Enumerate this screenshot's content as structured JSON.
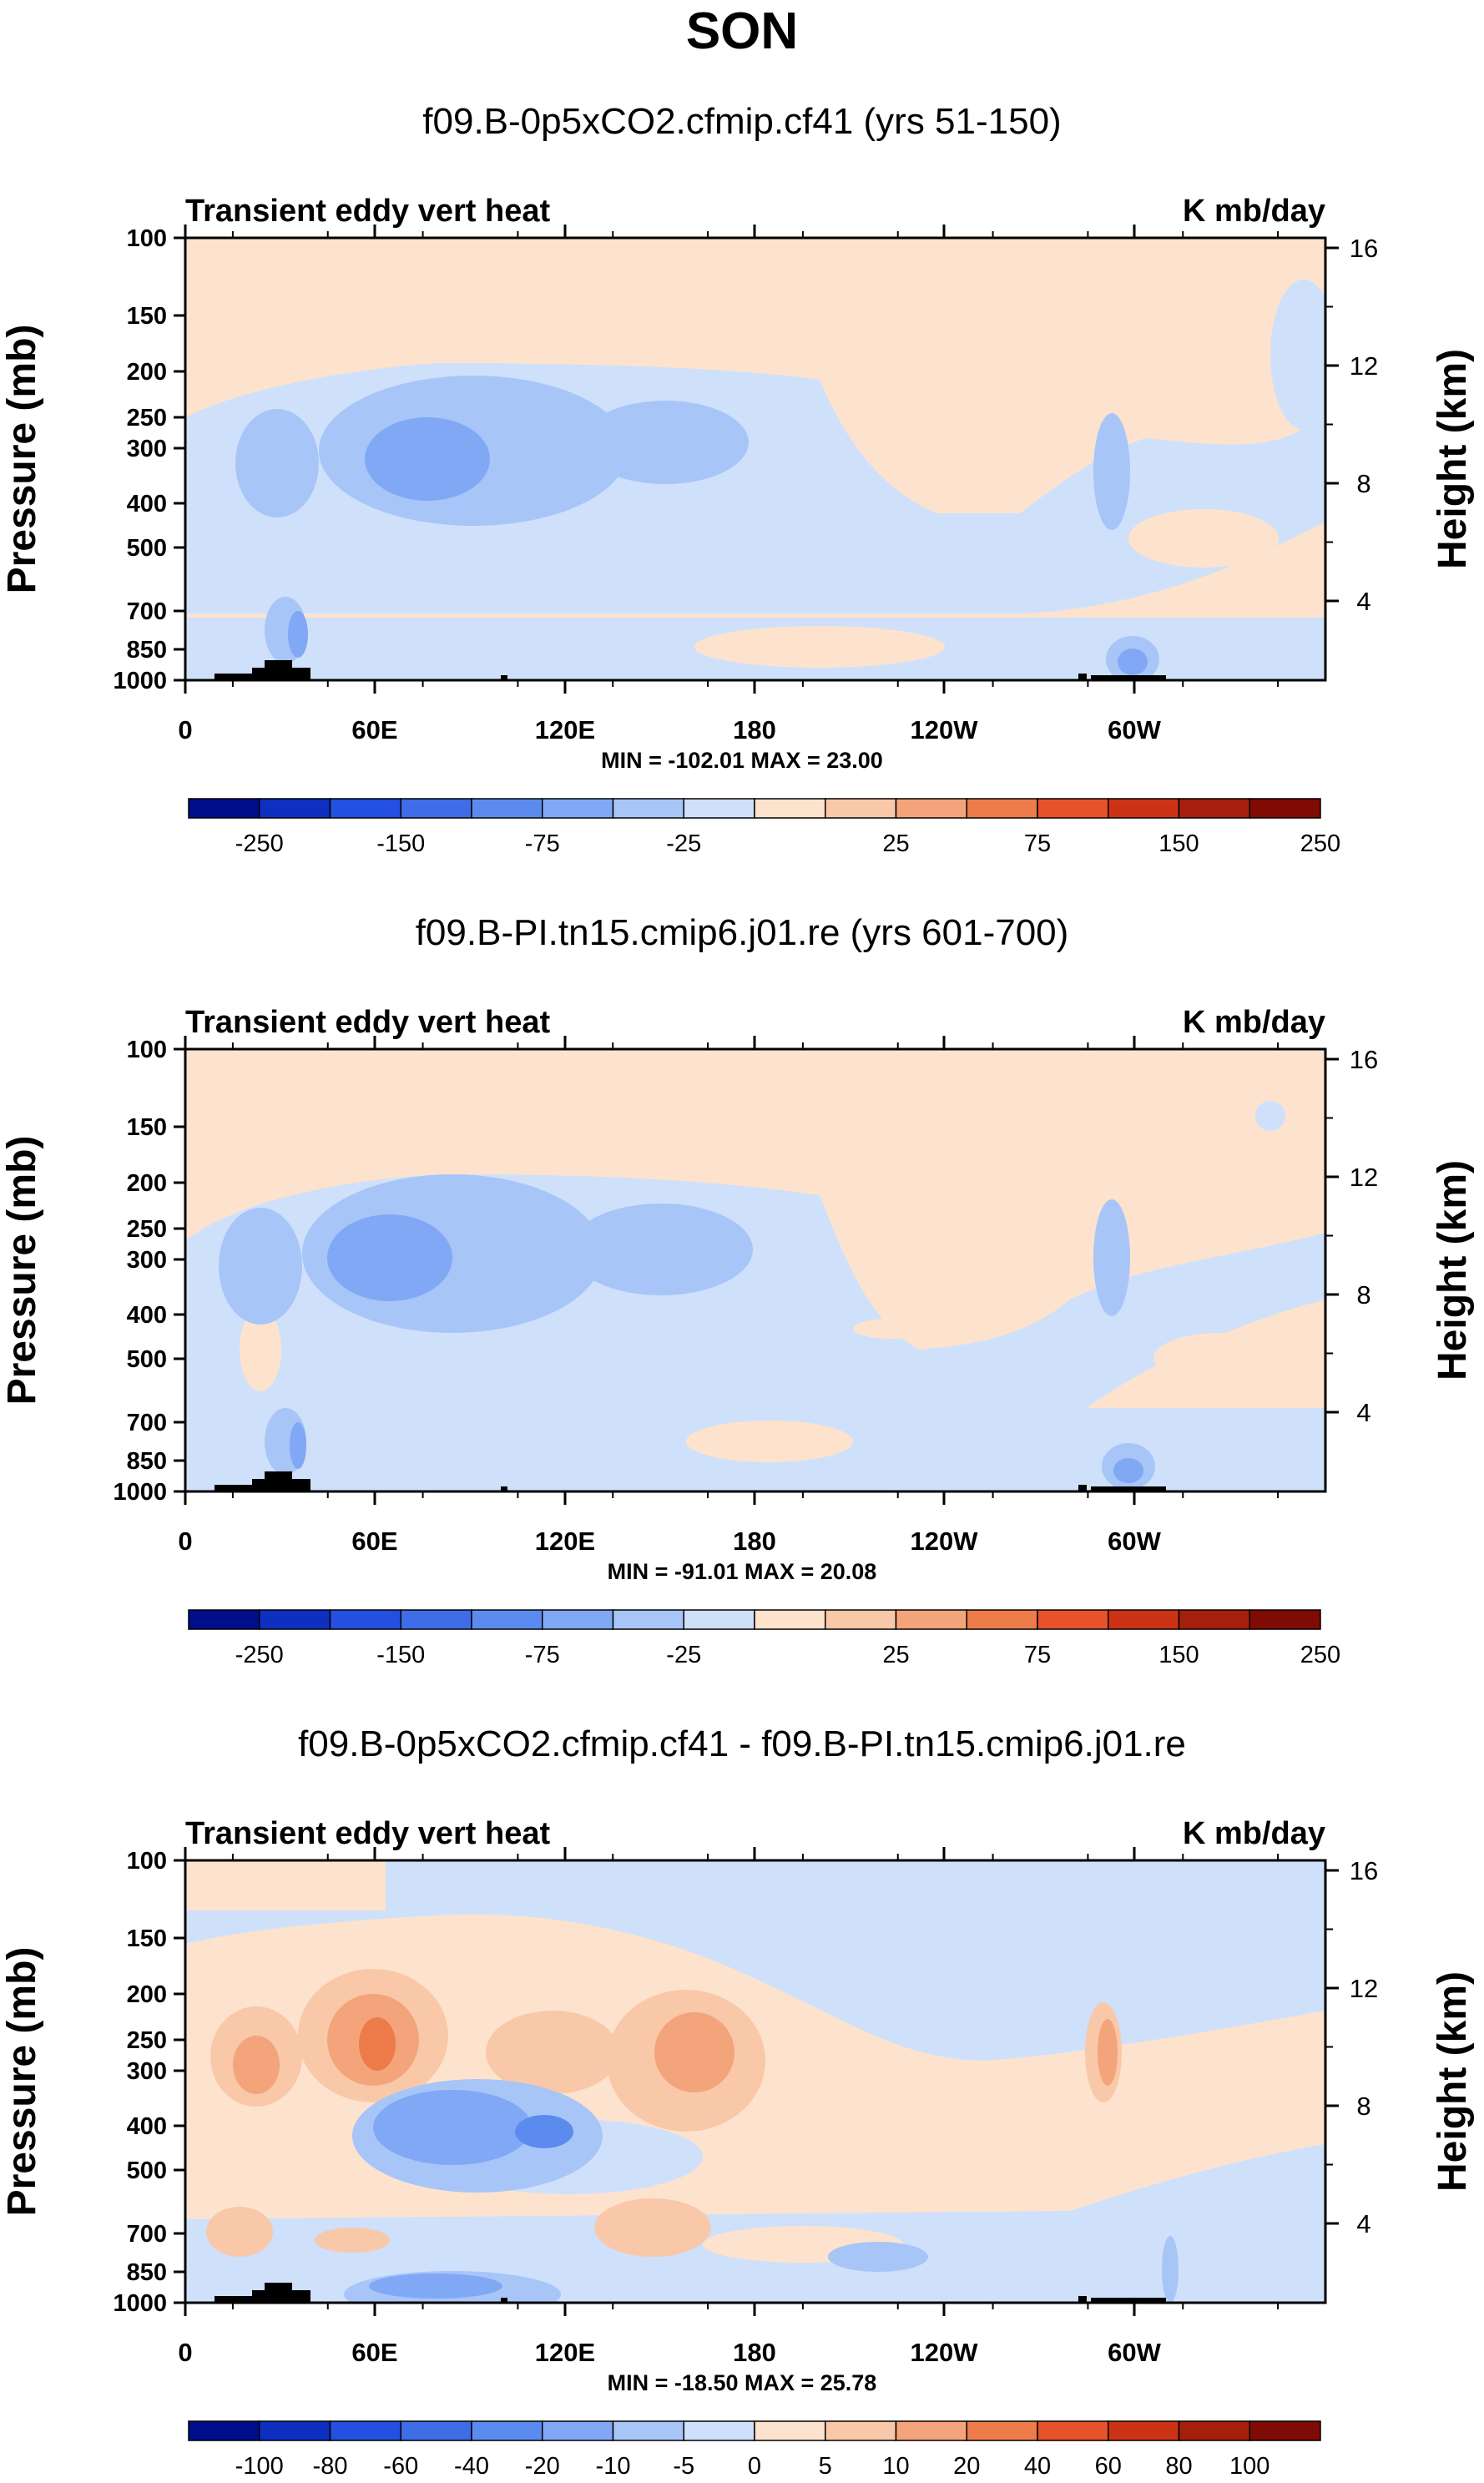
{
  "page_title": "SON",
  "colors": {
    "blues": [
      "#000e8c",
      "#0f2fc1",
      "#2350e0",
      "#3f6de8",
      "#5b8bef",
      "#80a8f4",
      "#a8c5f8",
      "#cfe0fb"
    ],
    "reds": [
      "#fde3cd",
      "#f9c8a9",
      "#f4a47b",
      "#ee7c4a",
      "#e6532a",
      "#cc3315",
      "#a61f0c",
      "#800b04"
    ],
    "land": "#000000"
  },
  "chart_data": [
    {
      "type": "heatmap",
      "title": "f09.B-0p5xCO2.cfmip.cf41 (yrs 51-150)",
      "left_label": "Transient eddy vert heat",
      "right_label": "K mb/day",
      "ylabel": "Pressure (mb)",
      "ylabel_right": "Height (km)",
      "x_ticks": [
        "0",
        "60E",
        "120E",
        "180",
        "120W",
        "60W"
      ],
      "y_ticks": [
        "100",
        "150",
        "200",
        "250",
        "300",
        "400",
        "500",
        "700",
        "850",
        "1000"
      ],
      "y_ticks_right": [
        "16",
        "12",
        "8",
        "4"
      ],
      "stats": "MIN = -102.01   MAX =  23.00",
      "colorbar_labels": [
        "-250",
        "-150",
        "-75",
        "-25",
        "25",
        "75",
        "150",
        "250"
      ],
      "zlim": [
        -102.01,
        23.0
      ]
    },
    {
      "type": "heatmap",
      "title": "f09.B-PI.tn15.cmip6.j01.re (yrs 601-700)",
      "left_label": "Transient eddy vert heat",
      "right_label": "K mb/day",
      "ylabel": "Pressure (mb)",
      "ylabel_right": "Height (km)",
      "x_ticks": [
        "0",
        "60E",
        "120E",
        "180",
        "120W",
        "60W"
      ],
      "y_ticks": [
        "100",
        "150",
        "200",
        "250",
        "300",
        "400",
        "500",
        "700",
        "850",
        "1000"
      ],
      "y_ticks_right": [
        "16",
        "12",
        "8",
        "4"
      ],
      "stats": "MIN = -91.01   MAX =  20.08",
      "colorbar_labels": [
        "-250",
        "-150",
        "-75",
        "-25",
        "25",
        "75",
        "150",
        "250"
      ],
      "zlim": [
        -91.01,
        20.08
      ]
    },
    {
      "type": "heatmap",
      "title": "f09.B-0p5xCO2.cfmip.cf41 - f09.B-PI.tn15.cmip6.j01.re",
      "left_label": "Transient eddy vert heat",
      "right_label": "K mb/day",
      "ylabel": "Pressure (mb)",
      "ylabel_right": "Height (km)",
      "x_ticks": [
        "0",
        "60E",
        "120E",
        "180",
        "120W",
        "60W"
      ],
      "y_ticks": [
        "100",
        "150",
        "200",
        "250",
        "300",
        "400",
        "500",
        "700",
        "850",
        "1000"
      ],
      "y_ticks_right": [
        "16",
        "12",
        "8",
        "4"
      ],
      "stats": "MIN = -18.50   MAX =  25.78",
      "colorbar_labels": [
        "-100",
        "-80",
        "-60",
        "-40",
        "-20",
        "-10",
        "-5",
        "0",
        "5",
        "10",
        "20",
        "40",
        "60",
        "80",
        "100"
      ],
      "zlim": [
        -18.5,
        25.78
      ]
    }
  ]
}
